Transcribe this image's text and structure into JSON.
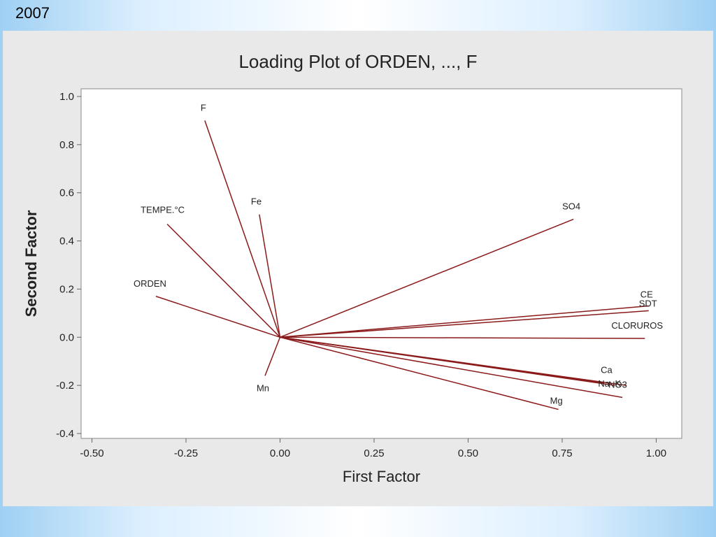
{
  "slide": {
    "year_label": "2007"
  },
  "chart_data": {
    "type": "loading-plot",
    "title": "Loading Plot of ORDEN, ..., F",
    "xlabel": "First Factor",
    "ylabel": "Second Factor",
    "xlim": [
      -0.5,
      1.0
    ],
    "ylim": [
      -0.4,
      1.0
    ],
    "xticks": [
      "-0.50",
      "-0.25",
      "0.00",
      "0.25",
      "0.50",
      "0.75",
      "1.00"
    ],
    "yticks": [
      "-0.4",
      "-0.2",
      "0.0",
      "0.2",
      "0.4",
      "0.6",
      "0.8",
      "1.0"
    ],
    "grid": false,
    "line_color": "#8b1a1a",
    "vectors": [
      {
        "label": "F",
        "x": -0.2,
        "y": 0.9
      },
      {
        "label": "Fe",
        "x": -0.055,
        "y": 0.51
      },
      {
        "label": "TEMPE.°C",
        "x": -0.3,
        "y": 0.47
      },
      {
        "label": "ORDEN",
        "x": -0.33,
        "y": 0.17
      },
      {
        "label": "Mn",
        "x": -0.04,
        "y": -0.16
      },
      {
        "label": "SO4",
        "x": 0.78,
        "y": 0.49
      },
      {
        "label": "CE",
        "x": 0.98,
        "y": 0.13
      },
      {
        "label": "SDT",
        "x": 0.98,
        "y": 0.11
      },
      {
        "label": "CLORUROS",
        "x": 0.97,
        "y": -0.005
      },
      {
        "label": "Ca",
        "x": 0.86,
        "y": -0.19
      },
      {
        "label": "Na",
        "x": 0.89,
        "y": -0.2
      },
      {
        "label": "K",
        "x": 0.92,
        "y": -0.2
      },
      {
        "label": "NO3",
        "x": 0.91,
        "y": -0.25
      },
      {
        "label": "Mg",
        "x": 0.74,
        "y": -0.3
      }
    ]
  }
}
